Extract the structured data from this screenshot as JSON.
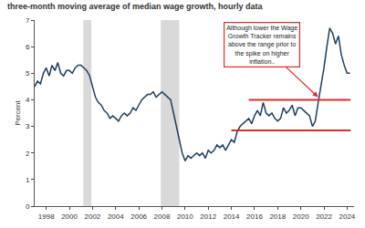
{
  "chart_data": {
    "type": "line",
    "title": "three-month moving average of median wage growth, hourly data",
    "y_label": "Percent",
    "x": [
      1997.0,
      1997.25,
      1997.5,
      1997.75,
      1998.0,
      1998.25,
      1998.5,
      1998.75,
      1999.0,
      1999.25,
      1999.5,
      1999.75,
      2000.0,
      2000.25,
      2000.5,
      2000.75,
      2001.0,
      2001.25,
      2001.5,
      2001.75,
      2002.0,
      2002.25,
      2002.5,
      2002.75,
      2003.0,
      2003.25,
      2003.5,
      2003.75,
      2004.0,
      2004.25,
      2004.5,
      2004.75,
      2005.0,
      2005.25,
      2005.5,
      2005.75,
      2006.0,
      2006.25,
      2006.5,
      2006.75,
      2007.0,
      2007.25,
      2007.5,
      2007.75,
      2008.0,
      2008.25,
      2008.5,
      2008.75,
      2009.0,
      2009.25,
      2009.5,
      2009.75,
      2010.0,
      2010.25,
      2010.5,
      2010.75,
      2011.0,
      2011.25,
      2011.5,
      2011.75,
      2012.0,
      2012.25,
      2012.5,
      2012.75,
      2013.0,
      2013.25,
      2013.5,
      2013.75,
      2014.0,
      2014.25,
      2014.5,
      2014.75,
      2015.0,
      2015.25,
      2015.5,
      2015.75,
      2016.0,
      2016.25,
      2016.5,
      2016.75,
      2017.0,
      2017.25,
      2017.5,
      2017.75,
      2018.0,
      2018.25,
      2018.5,
      2018.75,
      2019.0,
      2019.25,
      2019.5,
      2019.75,
      2020.0,
      2020.25,
      2020.5,
      2020.75,
      2021.0,
      2021.25,
      2021.5,
      2021.75,
      2022.0,
      2022.25,
      2022.5,
      2022.75,
      2023.0,
      2023.25,
      2023.5,
      2023.75,
      2024.0,
      2024.25
    ],
    "values": [
      4.5,
      4.7,
      4.6,
      5.0,
      5.2,
      4.9,
      5.3,
      5.1,
      5.4,
      5.0,
      4.9,
      5.1,
      5.1,
      5.0,
      5.2,
      5.3,
      5.3,
      5.2,
      5.1,
      4.9,
      4.5,
      4.1,
      3.9,
      3.8,
      3.6,
      3.5,
      3.3,
      3.4,
      3.3,
      3.2,
      3.4,
      3.5,
      3.4,
      3.5,
      3.7,
      3.6,
      3.8,
      4.0,
      4.1,
      4.2,
      4.2,
      4.3,
      4.1,
      4.2,
      4.3,
      4.2,
      4.1,
      4.0,
      3.5,
      3.0,
      2.4,
      2.0,
      1.7,
      1.9,
      1.8,
      1.9,
      2.0,
      1.9,
      2.0,
      1.8,
      2.1,
      2.0,
      2.1,
      2.3,
      2.2,
      2.3,
      2.1,
      2.3,
      2.5,
      2.4,
      2.8,
      3.0,
      3.1,
      3.2,
      3.3,
      3.1,
      3.4,
      3.6,
      3.4,
      3.9,
      3.5,
      3.4,
      3.5,
      3.3,
      3.2,
      3.3,
      3.7,
      3.5,
      3.6,
      3.8,
      3.4,
      3.7,
      3.7,
      3.6,
      3.5,
      3.4,
      3.0,
      3.2,
      3.9,
      4.5,
      5.2,
      6.0,
      6.7,
      6.5,
      6.1,
      6.4,
      5.7,
      5.3,
      5.0,
      5.0
    ],
    "color": "#1f3f5f",
    "xlim": [
      1997,
      2024.6
    ],
    "xticks": [
      1998,
      2000,
      2002,
      2004,
      2006,
      2008,
      2010,
      2012,
      2014,
      2016,
      2018,
      2020,
      2022,
      2024
    ],
    "ylim": [
      0,
      7
    ],
    "yticks": [
      0,
      1,
      2,
      3,
      4,
      5,
      6,
      7
    ],
    "grid": false,
    "recessions": [
      [
        2001.2,
        2001.9
      ],
      [
        2007.9,
        2009.5
      ]
    ],
    "reference_lines": [
      {
        "y": 4.0,
        "x": [
          2015.5,
          2024.3
        ],
        "color": "#e02b2b"
      },
      {
        "y": 2.85,
        "x": [
          2014.0,
          2024.3
        ],
        "color": "#e02b2b"
      }
    ],
    "annotation": {
      "lines": [
        "Although lower the Wage",
        "Growth Tracker remains",
        "above the range prior to",
        "the spike on higher",
        "inflation.."
      ],
      "x": 2021.5,
      "y": 4.1,
      "color": "#e02b2b"
    }
  }
}
